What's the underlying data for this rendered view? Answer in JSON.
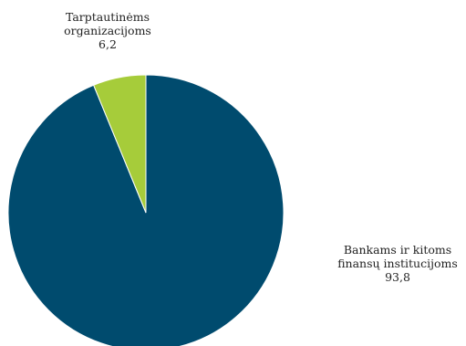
{
  "chart_data": {
    "type": "pie",
    "slices": [
      {
        "label_lines": [
          "Bankams ir kitoms",
          "finansų institucijoms"
        ],
        "value": 93.8,
        "value_text": "93,8",
        "color": "#004b6e"
      },
      {
        "label_lines": [
          "Tarptautinėms",
          "organizacijoms"
        ],
        "value": 6.2,
        "value_text": "6,2",
        "color": "#a6cc3a"
      }
    ],
    "start_angle": "12 o'clock",
    "direction": "clockwise"
  }
}
